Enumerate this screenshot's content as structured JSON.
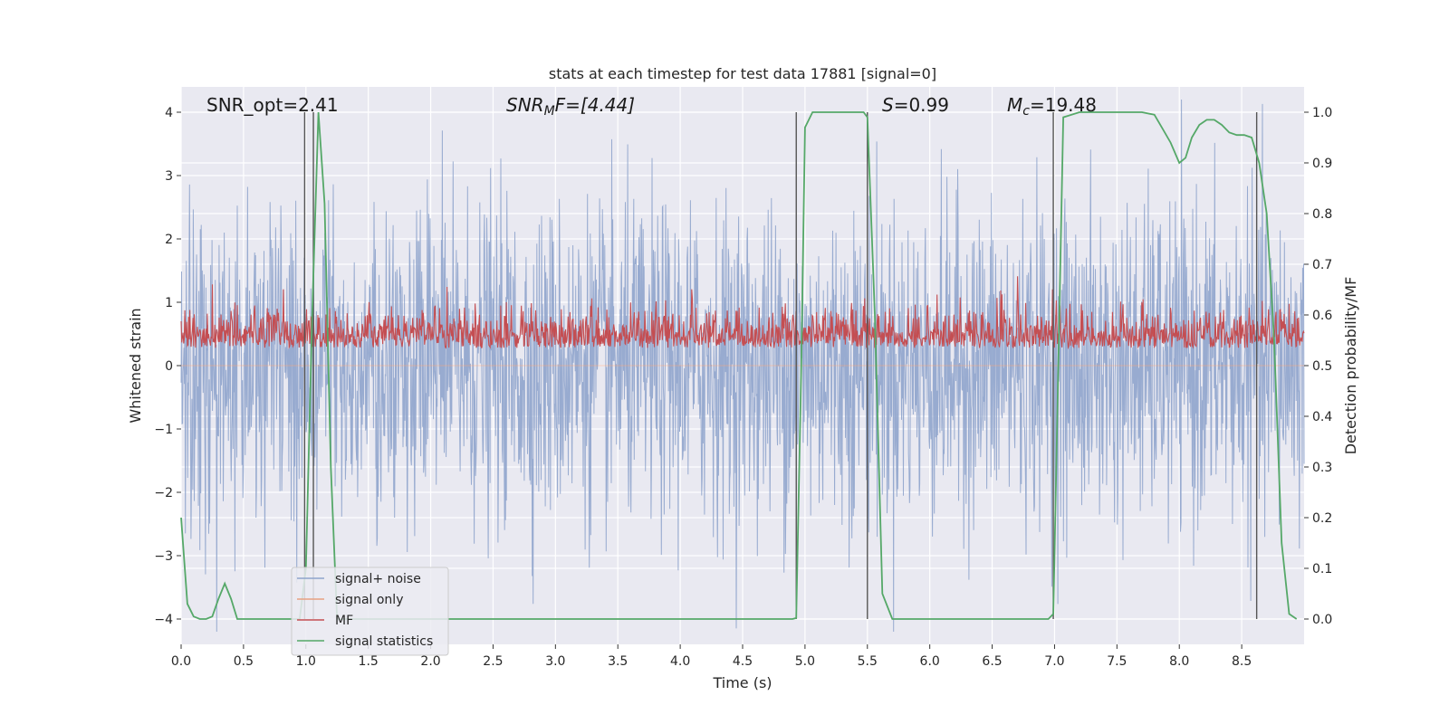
{
  "chart_data": {
    "type": "line",
    "title": "stats at each timestep for test data 17881 [signal=0]",
    "xlabel": "Time (s)",
    "ylabel": "Whitened strain",
    "ylabel_right": "Detection probability/MF",
    "xlim": [
      0.0,
      9.0
    ],
    "ylim": [
      -4.4,
      4.4
    ],
    "ylim_right": [
      -0.05,
      1.05
    ],
    "x_ticks": [
      "0.0",
      "0.5",
      "1.0",
      "1.5",
      "2.0",
      "2.5",
      "3.0",
      "3.5",
      "4.0",
      "4.5",
      "5.0",
      "5.5",
      "6.0",
      "6.5",
      "7.0",
      "7.5",
      "8.0",
      "8.5"
    ],
    "y_ticks": [
      "4",
      "3",
      "2",
      "1",
      "0",
      "−1",
      "−2",
      "−3",
      "−4"
    ],
    "y_right_ticks": [
      "1.0",
      "0.9",
      "0.8",
      "0.7",
      "0.6",
      "0.5",
      "0.4",
      "0.3",
      "0.2",
      "0.1",
      "0.0"
    ],
    "annotations": {
      "snr_opt": "SNR_opt=2.41",
      "snr_mf_main": "SNR",
      "snr_mf_sub": "M",
      "snr_mf_rest": "F=[4.44]",
      "s_main": "S",
      "s_rest": "=0.99",
      "mc_main": "M",
      "mc_sub": "c",
      "mc_rest": "=19.48"
    },
    "vertical_markers": [
      0.99,
      1.06,
      4.93,
      5.5,
      6.99,
      8.62
    ],
    "series": [
      {
        "name": "signal+ noise",
        "color": "#8fa4cc",
        "description": "whitened noise strain, roughly gaussian, amplitude within about ±4"
      },
      {
        "name": "signal only",
        "color": "#e8a282",
        "description": "zero (no signal injected)"
      },
      {
        "name": "MF",
        "color": "#c44e52",
        "description": "matched-filter output on right axis, fluctuating about 0.5-0.6"
      },
      {
        "name": "signal statistics",
        "color": "#55a868",
        "x": [
          0.0,
          0.05,
          0.1,
          0.15,
          0.2,
          0.25,
          0.3,
          0.35,
          0.4,
          0.45,
          0.5,
          0.55,
          0.6,
          0.65,
          0.7,
          0.75,
          0.8,
          0.85,
          0.9,
          0.95,
          1.0,
          1.05,
          1.1,
          1.15,
          1.2,
          1.25,
          1.3,
          1.5,
          2.0,
          2.5,
          3.0,
          3.5,
          4.0,
          4.5,
          4.9,
          4.93,
          4.97,
          5.0,
          5.06,
          5.2,
          5.4,
          5.47,
          5.5,
          5.56,
          5.62,
          5.7,
          6.0,
          6.5,
          6.95,
          6.99,
          7.03,
          7.07,
          7.2,
          7.5,
          7.7,
          7.8,
          7.86,
          7.93,
          8.0,
          8.05,
          8.1,
          8.16,
          8.22,
          8.28,
          8.34,
          8.4,
          8.46,
          8.52,
          8.58,
          8.64,
          8.7,
          8.76,
          8.82,
          8.88,
          8.94
        ],
        "values": [
          0.2,
          0.03,
          0.005,
          0.0,
          0.0,
          0.005,
          0.04,
          0.07,
          0.04,
          0.0,
          0.0,
          0.0,
          0.0,
          0.0,
          0.0,
          0.0,
          0.0,
          0.0,
          0.0,
          0.0,
          0.1,
          0.6,
          1.0,
          0.82,
          0.3,
          0.0,
          0.0,
          0.0,
          0.0,
          0.0,
          0.0,
          0.0,
          0.0,
          0.0,
          0.0,
          0.002,
          0.5,
          0.97,
          1.0,
          1.0,
          1.0,
          1.0,
          0.99,
          0.6,
          0.05,
          0.0,
          0.0,
          0.0,
          0.0,
          0.01,
          0.5,
          0.99,
          1.0,
          1.0,
          1.0,
          0.995,
          0.97,
          0.94,
          0.9,
          0.91,
          0.95,
          0.975,
          0.985,
          0.985,
          0.975,
          0.96,
          0.955,
          0.955,
          0.95,
          0.9,
          0.8,
          0.55,
          0.15,
          0.01,
          0.0
        ]
      }
    ],
    "legend": [
      "signal+ noise",
      "signal only",
      "MF",
      "signal statistics"
    ],
    "legend_position": "lower-left",
    "grid": true
  }
}
